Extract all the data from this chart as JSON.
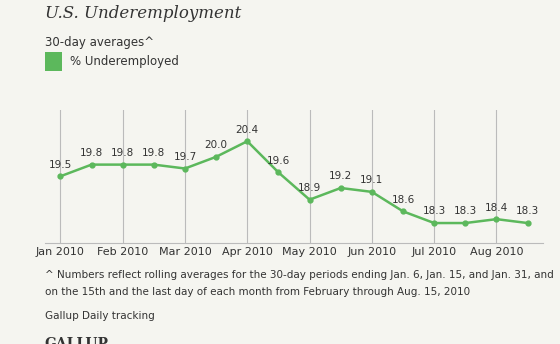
{
  "title": "U.S. Underemployment",
  "subtitle": "30-day averages^",
  "legend_label": "% Underemployed",
  "x_values": [
    0,
    1,
    2,
    3,
    4,
    5,
    6,
    7,
    8,
    9,
    10,
    11,
    12,
    13,
    14,
    15
  ],
  "y_values": [
    19.5,
    19.8,
    19.8,
    19.8,
    19.7,
    20.0,
    20.4,
    19.6,
    18.9,
    19.2,
    19.1,
    18.6,
    18.3,
    18.3,
    18.4,
    18.3
  ],
  "labels": [
    "19.5",
    "19.8",
    "19.8",
    "19.8",
    "19.7",
    "20.0",
    "20.4",
    "19.6",
    "18.9",
    "19.2",
    "19.1",
    "18.6",
    "18.3",
    "18.3",
    "18.4",
    "18.3"
  ],
  "label_va": [
    "bottom",
    "bottom",
    "bottom",
    "bottom",
    "bottom",
    "bottom",
    "bottom",
    "bottom",
    "bottom",
    "bottom",
    "bottom",
    "bottom",
    "bottom",
    "bottom",
    "bottom",
    "bottom"
  ],
  "xtick_positions": [
    0,
    2,
    4,
    6,
    8,
    10,
    12,
    14
  ],
  "xtick_labels": [
    "Jan 2010",
    "Feb 2010",
    "Mar 2010",
    "Apr 2010",
    "May 2010",
    "Jun 2010",
    "Jul 2010",
    "Aug 2010"
  ],
  "line_color": "#5cb85c",
  "marker_color": "#5cb85c",
  "ylim": [
    17.8,
    21.2
  ],
  "footnote1": "^ Numbers reflect rolling averages for the 30-day periods ending Jan. 6, Jan. 15, and Jan. 31, and",
  "footnote2": "on the 15th and the last day of each month from February through Aug. 15, 2010",
  "source": "Gallup Daily tracking",
  "brand": "GALLUP",
  "bg_color": "#f5f5f0",
  "grid_color": "#bbbbbb",
  "text_color": "#333333",
  "label_fontsize": 7.5,
  "title_fontsize": 12,
  "subtitle_fontsize": 8.5,
  "xtick_fontsize": 8,
  "footnote_fontsize": 7.5
}
